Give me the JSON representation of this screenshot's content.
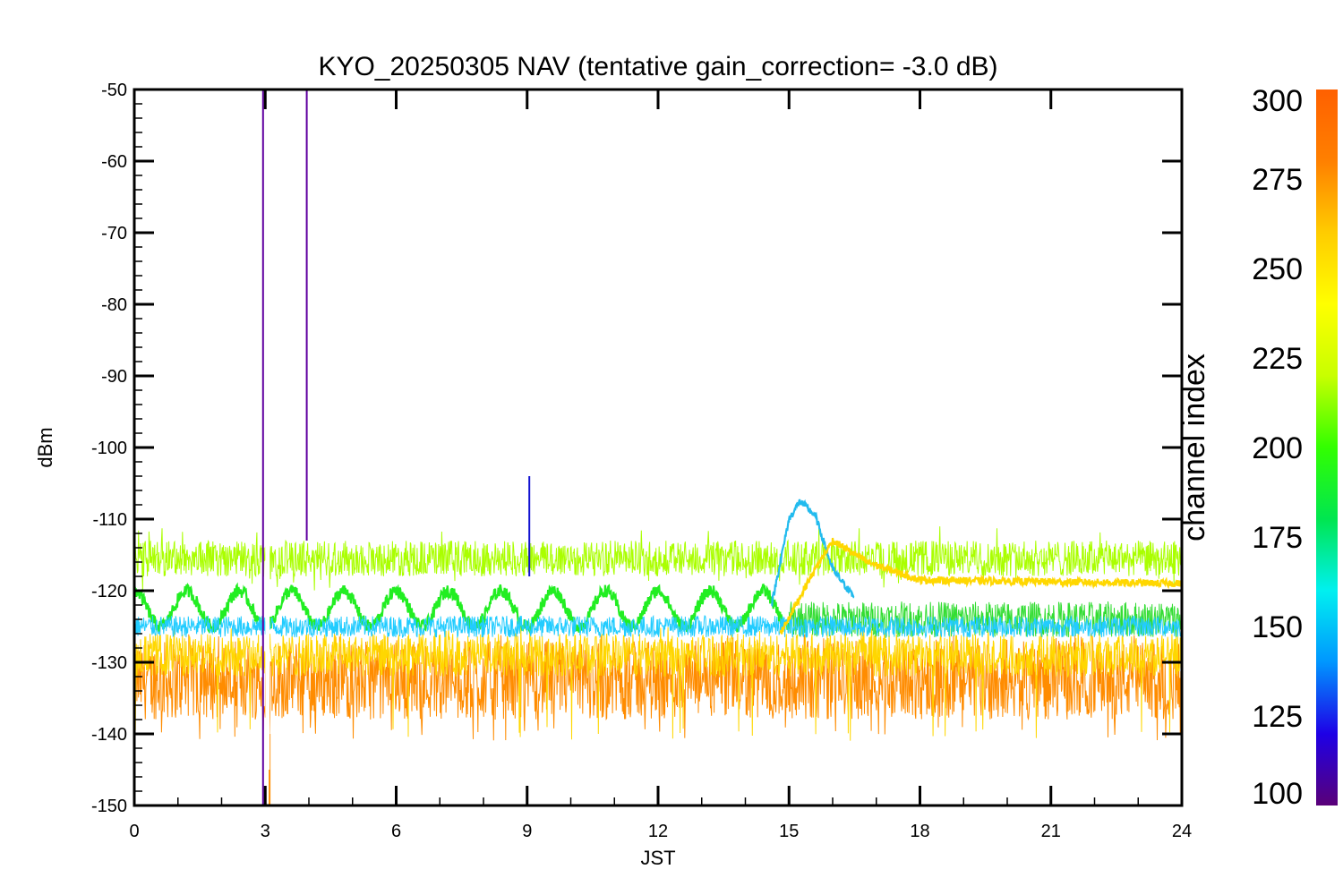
{
  "chart_data": {
    "type": "line",
    "title": "KYO_20250305 NAV (tentative gain_correction= -3.0 dB)",
    "xlabel": "JST",
    "ylabel": "dBm",
    "xlim": [
      0,
      24
    ],
    "ylim": [
      -150,
      -50
    ],
    "x_ticks": [
      "0",
      "3",
      "6",
      "9",
      "12",
      "15",
      "18",
      "21",
      "24"
    ],
    "y_ticks": [
      "-50",
      "-60",
      "-70",
      "-80",
      "-90",
      "-100",
      "-110",
      "-120",
      "-130",
      "-140",
      "-150"
    ],
    "grid": false,
    "colorbar": {
      "label": "channel index",
      "range": [
        100,
        300
      ],
      "ticks": [
        "300",
        "275",
        "250",
        "225",
        "200",
        "175",
        "150",
        "125",
        "100"
      ],
      "colors": [
        "#5a0078",
        "#1e00e6",
        "#0096ff",
        "#00f0f0",
        "#00e650",
        "#32ff00",
        "#c8ff00",
        "#ffff00",
        "#ffcc00",
        "#ff8000",
        "#ff6000"
      ]
    },
    "series": [
      {
        "channel": 280,
        "color": "#ff8c00",
        "kind": "noise-band",
        "center": -132.5,
        "spread": 5.5,
        "tail_low": -141,
        "tail_high": -126
      },
      {
        "channel": 265,
        "color": "#ffd700",
        "kind": "noise-band",
        "center": -129,
        "spread": 3,
        "tail_low": -141,
        "tail_high": -125
      },
      {
        "channel": 240,
        "color": "#aaff00",
        "kind": "noise-band",
        "center": -115.5,
        "spread": 2.5,
        "tail_low": -120,
        "tail_high": -111
      },
      {
        "channel": 225,
        "color": "#22ee22",
        "kind": "oscillation",
        "center": -122.5,
        "amplitude": 2.5,
        "period_hours": 1.2,
        "x_range": [
          0,
          15
        ]
      },
      {
        "channel": 225,
        "color": "#33dd33",
        "kind": "noise-band",
        "center": -124,
        "spread": 2.5,
        "x_range": [
          15,
          24
        ]
      },
      {
        "channel": 180,
        "color": "#22ccff",
        "kind": "noise-band",
        "center": -125,
        "spread": 1.5
      },
      {
        "channel": 175,
        "color": "#22bbee",
        "kind": "peak",
        "points": [
          [
            14.6,
            -122
          ],
          [
            15.0,
            -110
          ],
          [
            15.25,
            -107.5
          ],
          [
            15.6,
            -109.5
          ],
          [
            16.0,
            -117
          ],
          [
            16.5,
            -121
          ]
        ]
      },
      {
        "channel": 270,
        "color": "#ffd700",
        "kind": "ramp",
        "points": [
          [
            14.8,
            -126
          ],
          [
            15.5,
            -118
          ],
          [
            16.0,
            -113
          ],
          [
            16.8,
            -116
          ],
          [
            18.0,
            -118.5
          ],
          [
            24.0,
            -119
          ]
        ]
      },
      {
        "channel": 110,
        "color": "#6000a0",
        "kind": "spike",
        "points": [
          [
            2.95,
            -50
          ],
          [
            2.95,
            -150
          ]
        ]
      },
      {
        "channel": 110,
        "color": "#6000a0",
        "kind": "spike",
        "points": [
          [
            3.95,
            -50
          ],
          [
            3.95,
            -113
          ]
        ]
      },
      {
        "channel": 130,
        "color": "#1010d0",
        "kind": "spike",
        "points": [
          [
            9.05,
            -104
          ],
          [
            9.05,
            -118
          ]
        ]
      },
      {
        "channel": 290,
        "color": "#ff8c00",
        "kind": "spike",
        "points": [
          [
            3.1,
            -150
          ],
          [
            3.1,
            -140
          ]
        ]
      }
    ],
    "gap": {
      "x_range": [
        3.0,
        3.1
      ],
      "y_range": [
        -145,
        -112
      ]
    }
  }
}
